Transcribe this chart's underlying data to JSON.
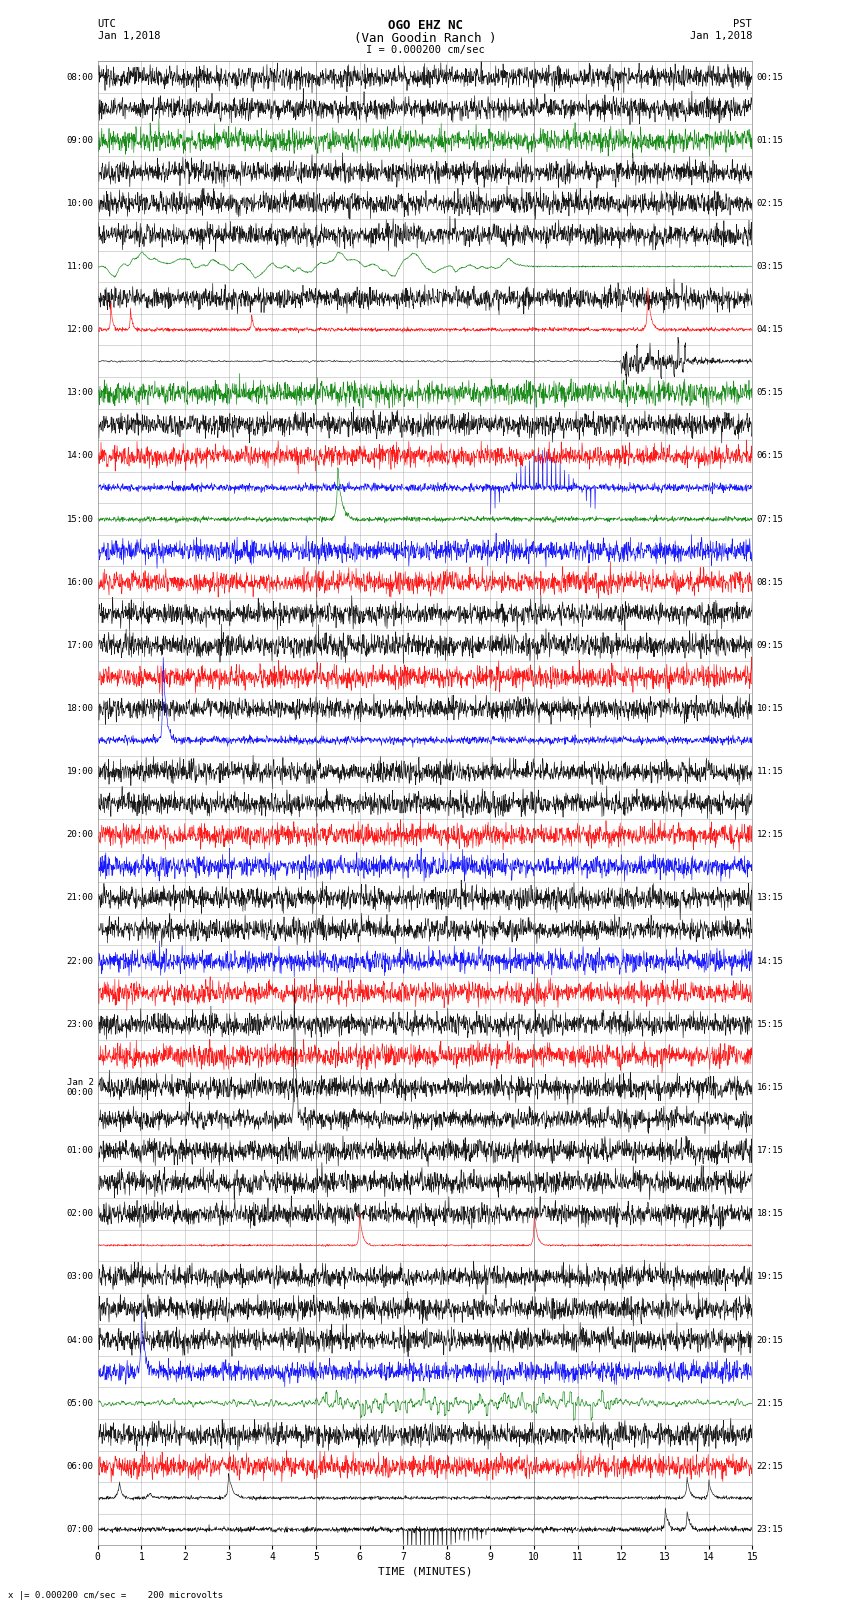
{
  "title_line1": "OGO EHZ NC",
  "title_line2": "(Van Goodin Ranch )",
  "scale_label": "I = 0.000200 cm/sec",
  "left_label_line1": "UTC",
  "left_label_line2": "Jan 1,2018",
  "right_label_line1": "PST",
  "right_label_line2": "Jan 1,2018",
  "xlabel": "TIME (MINUTES)",
  "bottom_note": "x |= 0.000200 cm/sec =    200 microvolts",
  "utc_times": [
    "08:00",
    "",
    "09:00",
    "",
    "10:00",
    "",
    "11:00",
    "",
    "12:00",
    "",
    "13:00",
    "",
    "14:00",
    "",
    "15:00",
    "",
    "16:00",
    "",
    "17:00",
    "",
    "18:00",
    "",
    "19:00",
    "",
    "20:00",
    "",
    "21:00",
    "",
    "22:00",
    "",
    "23:00",
    "",
    "Jan 2\n00:00",
    "",
    "01:00",
    "",
    "02:00",
    "",
    "03:00",
    "",
    "04:00",
    "",
    "05:00",
    "",
    "06:00",
    "",
    "07:00"
  ],
  "pst_times": [
    "00:15",
    "",
    "01:15",
    "",
    "02:15",
    "",
    "03:15",
    "",
    "04:15",
    "",
    "05:15",
    "",
    "06:15",
    "",
    "07:15",
    "",
    "08:15",
    "",
    "09:15",
    "",
    "10:15",
    "",
    "11:15",
    "",
    "12:15",
    "",
    "13:15",
    "",
    "14:15",
    "",
    "15:15",
    "",
    "16:15",
    "",
    "17:15",
    "",
    "18:15",
    "",
    "19:15",
    "",
    "20:15",
    "",
    "21:15",
    "",
    "22:15",
    "",
    "23:15"
  ],
  "n_rows": 47,
  "minutes": 15,
  "background_color": "#ffffff",
  "grid_color": "#888888",
  "trace_colors": [
    "black",
    "red",
    "blue",
    "green"
  ],
  "fig_width": 8.5,
  "fig_height": 16.13
}
